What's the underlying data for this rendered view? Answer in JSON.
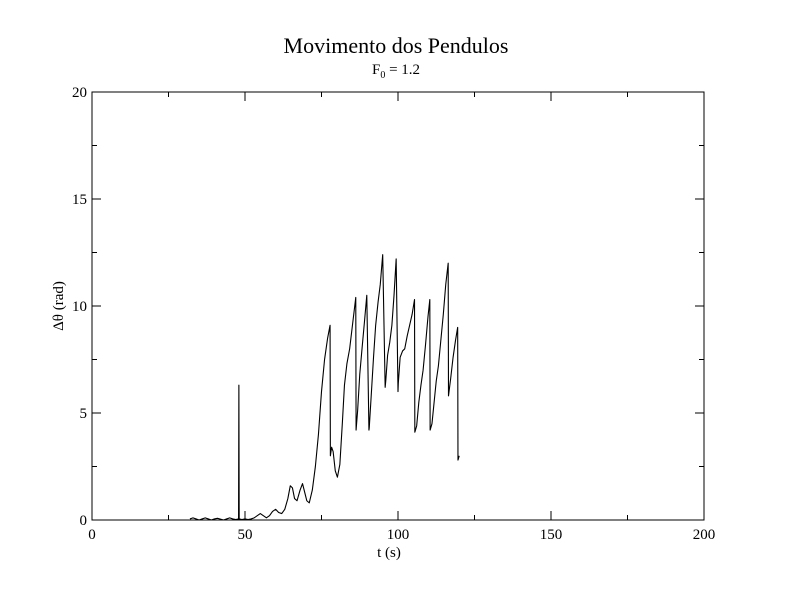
{
  "chart_data": {
    "type": "line",
    "title": "Movimento dos Pendulos",
    "subtitle": {
      "base": "F",
      "subscript": "0",
      "rest": " = 1.2"
    },
    "xlabel": "t (s)",
    "ylabel": "Δθ (rad)",
    "xlim": [
      0,
      200
    ],
    "ylim": [
      0,
      20
    ],
    "xticks": [
      "0",
      "50",
      "100",
      "150",
      "200"
    ],
    "xtick_values": [
      0,
      50,
      100,
      150,
      200
    ],
    "yticks": [
      "0",
      "5",
      "10",
      "15",
      "20"
    ],
    "ytick_values": [
      0,
      5,
      10,
      15,
      20
    ],
    "grid": false,
    "legend": "none",
    "line_color": "#000000",
    "series": [
      {
        "x": [
          32,
          33,
          34,
          35,
          36,
          37,
          38,
          39,
          40,
          41,
          42,
          43,
          44,
          45,
          46,
          47,
          47.9,
          48,
          48.1,
          49,
          50,
          51,
          52,
          53,
          54,
          55,
          56,
          57,
          58,
          59,
          60,
          61,
          62,
          63,
          64,
          64.8,
          65.5,
          66.2,
          67,
          68,
          68.8,
          69.5,
          70.2,
          71,
          72,
          73,
          74,
          75,
          76,
          77,
          77.8,
          77.9,
          78.3,
          78.8,
          79.5,
          80.2,
          81,
          81.8,
          82.5,
          83.3,
          84.2,
          85.2,
          86.2,
          86.3,
          86.8,
          87.5,
          88.3,
          89,
          89.8,
          90.5,
          90.6,
          91.2,
          92,
          92.7,
          93.5,
          94.2,
          95,
          95.8,
          96,
          96.6,
          97.3,
          98,
          98.7,
          99.4,
          100,
          100.1,
          100.7,
          101.5,
          102.2,
          103,
          103.8,
          104.6,
          105.4,
          105.5,
          106.1,
          106.8,
          107.5,
          108.2,
          109,
          109.8,
          110.4,
          110.5,
          111.1,
          111.8,
          112.5,
          113.2,
          114,
          114.8,
          115.6,
          116.4,
          116.5,
          117.2,
          118,
          118.8,
          119.5,
          119.6,
          120
        ],
        "y": [
          0.05,
          0.1,
          0.05,
          0.0,
          0.05,
          0.1,
          0.05,
          0.0,
          0.05,
          0.08,
          0.04,
          0.0,
          0.05,
          0.1,
          0.05,
          0.02,
          0.05,
          6.3,
          0.05,
          0.02,
          0.05,
          0.02,
          0.05,
          0.1,
          0.2,
          0.3,
          0.2,
          0.1,
          0.2,
          0.4,
          0.5,
          0.35,
          0.3,
          0.5,
          1.0,
          1.6,
          1.5,
          1.0,
          0.9,
          1.4,
          1.7,
          1.3,
          0.9,
          0.8,
          1.4,
          2.5,
          4.0,
          6.0,
          7.5,
          8.5,
          9.1,
          3.0,
          3.4,
          3.2,
          2.3,
          2.0,
          2.6,
          4.5,
          6.3,
          7.3,
          8.0,
          9.2,
          10.4,
          4.2,
          5.1,
          6.8,
          8.1,
          9.2,
          10.5,
          4.2,
          4.3,
          5.7,
          7.6,
          9.1,
          10.2,
          11.0,
          12.4,
          6.2,
          6.5,
          7.7,
          8.3,
          9.1,
          10.5,
          12.2,
          6.0,
          6.4,
          7.6,
          7.9,
          8.0,
          8.6,
          9.1,
          9.6,
          10.3,
          4.1,
          4.4,
          5.5,
          6.3,
          7.0,
          8.2,
          9.5,
          10.3,
          4.2,
          4.5,
          5.5,
          6.5,
          7.2,
          8.4,
          9.6,
          11.0,
          12.0,
          5.8,
          6.6,
          7.6,
          8.4,
          9.0,
          2.8,
          3.0
        ]
      }
    ]
  }
}
